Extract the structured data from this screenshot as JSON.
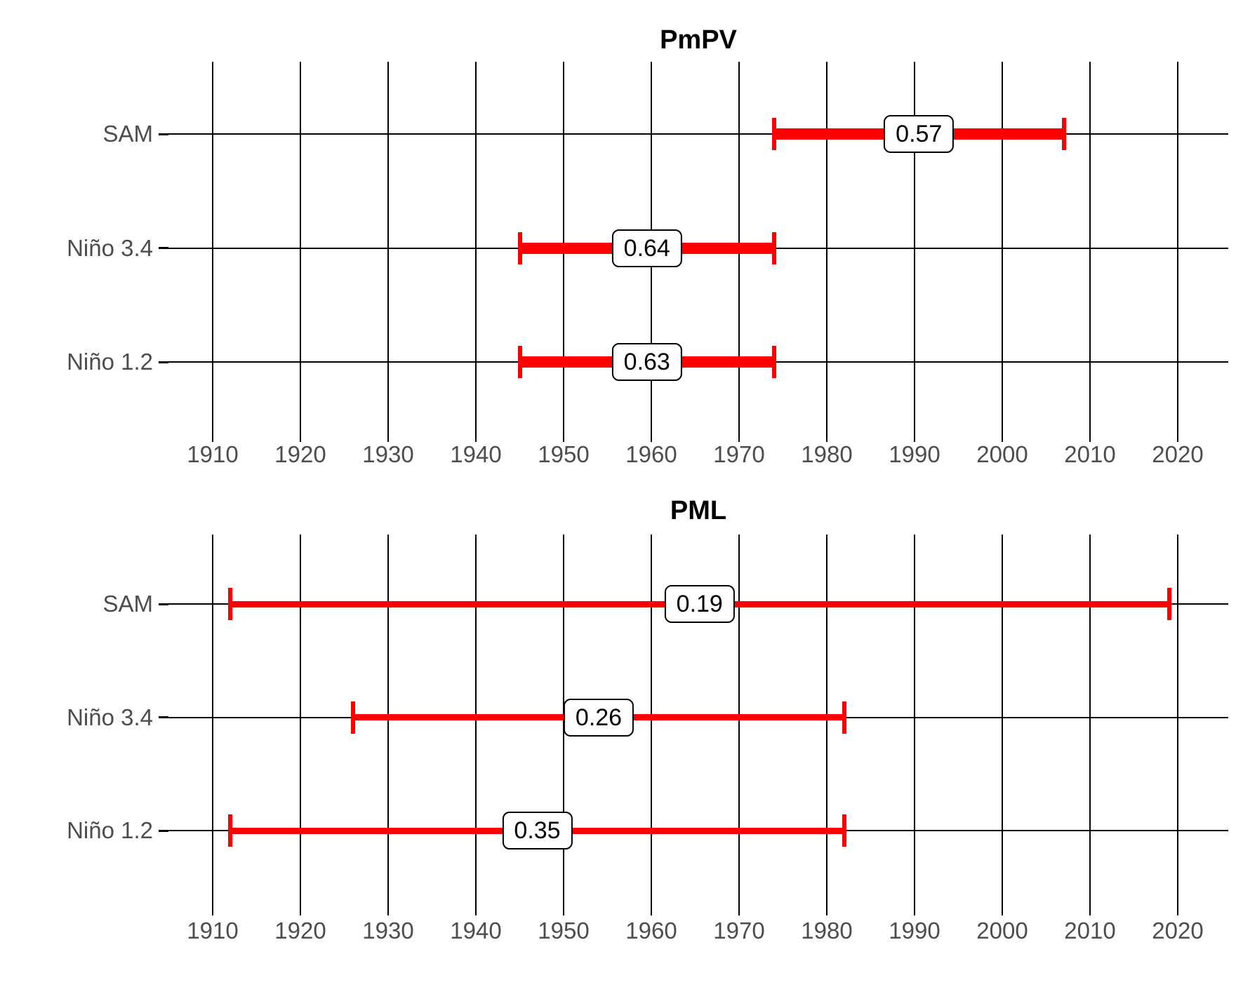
{
  "figure": {
    "bar_color": "#FF0000",
    "gridline_color": "#000000",
    "axis_text_color": "#4D4D4D",
    "background_color": "#FFFFFF"
  },
  "chart_data": [
    {
      "type": "bar",
      "subtype": "horizontal-range-bar",
      "title": "PmPV",
      "categories": [
        "SAM",
        "Niño 3.4",
        "Niño 1.2"
      ],
      "series": [
        {
          "name": "SAM",
          "x_start": 1974,
          "x_end": 2007,
          "value": 0.57,
          "value_label": "0.57"
        },
        {
          "name": "Niño 3.4",
          "x_start": 1945,
          "x_end": 1974,
          "value": 0.64,
          "value_label": "0.64"
        },
        {
          "name": "Niño 1.2",
          "x_start": 1945,
          "x_end": 1974,
          "value": 0.63,
          "value_label": "0.63"
        }
      ],
      "xlabel": "",
      "ylabel": "",
      "xticks": [
        1910,
        1920,
        1930,
        1940,
        1950,
        1960,
        1970,
        1980,
        1990,
        2000,
        2010,
        2020
      ],
      "xlim": [
        1905,
        2026
      ],
      "grid": true,
      "legend": false,
      "bar_color": "#FF0000"
    },
    {
      "type": "bar",
      "subtype": "horizontal-range-bar",
      "title": "PML",
      "categories": [
        "SAM",
        "Niño 3.4",
        "Niño 1.2"
      ],
      "series": [
        {
          "name": "SAM",
          "x_start": 1912,
          "x_end": 2019,
          "value": 0.19,
          "value_label": "0.19"
        },
        {
          "name": "Niño 3.4",
          "x_start": 1926,
          "x_end": 1982,
          "value": 0.26,
          "value_label": "0.26"
        },
        {
          "name": "Niño 1.2",
          "x_start": 1912,
          "x_end": 1982,
          "value": 0.35,
          "value_label": "0.35"
        }
      ],
      "xlabel": "",
      "ylabel": "",
      "xticks": [
        1910,
        1920,
        1930,
        1940,
        1950,
        1960,
        1970,
        1980,
        1990,
        2000,
        2010,
        2020
      ],
      "xlim": [
        1905,
        2026
      ],
      "grid": true,
      "legend": false,
      "bar_color": "#FF0000"
    }
  ]
}
